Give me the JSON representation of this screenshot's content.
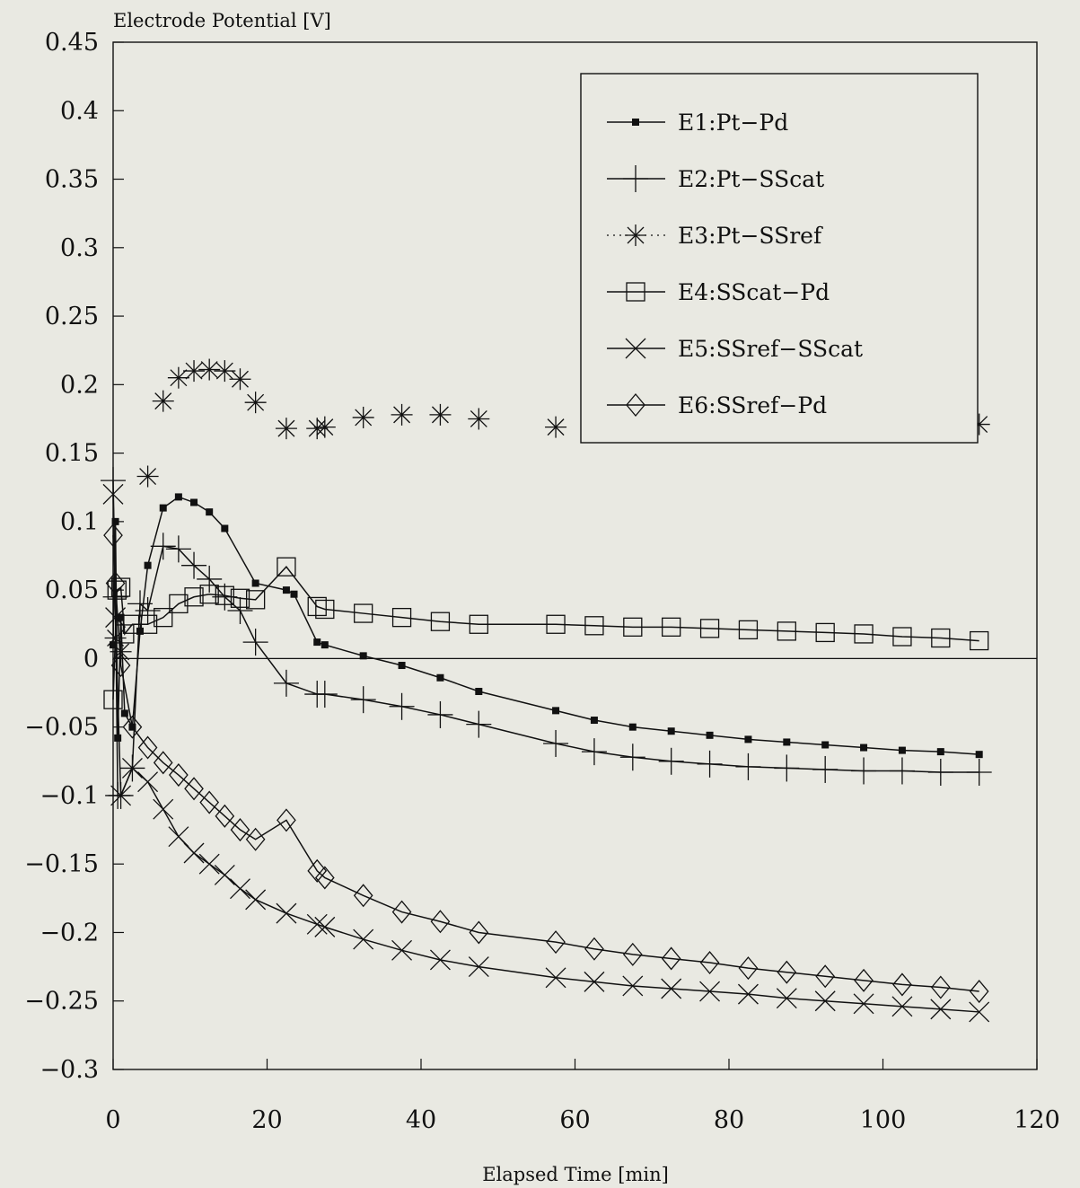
{
  "chart_data": {
    "type": "line",
    "title": "",
    "ylabel": "Electrode Potential [V]",
    "xlabel": "Elapsed Time [min]",
    "xlim": [
      0,
      120
    ],
    "ylim": [
      -0.3,
      0.45
    ],
    "xticks": [
      0,
      20,
      40,
      60,
      80,
      100,
      120
    ],
    "xtick_labels": [
      "0",
      "20",
      "40",
      "60",
      "80",
      "100",
      "120"
    ],
    "yticks": [
      0.45,
      0.4,
      0.35,
      0.3,
      0.25,
      0.2,
      0.15,
      0.1,
      0.05,
      0,
      -0.05,
      -0.1,
      -0.15,
      -0.2,
      -0.25,
      -0.3
    ],
    "ytick_labels": [
      "0.45",
      "0.4",
      "0.35",
      "0.3",
      "0.25",
      "0.2",
      "0.15",
      "0.1",
      "0.05",
      "0",
      "−0.05",
      "−0.1",
      "−0.15",
      "−0.2",
      "−0.25",
      "−0.3"
    ],
    "zero_line": true,
    "grid": false,
    "legend_position": "top-right",
    "series": [
      {
        "name": "E1:Pt−Pd",
        "marker": "filled-square-small",
        "x": [
          0,
          0.3,
          0.6,
          1,
          1.5,
          2.5,
          3.5,
          4.5,
          6.5,
          8.5,
          10.5,
          12.5,
          14.5,
          18.5,
          22.5,
          23.5,
          26.5,
          27.5,
          32.5,
          37.5,
          42.5,
          47.5,
          57.5,
          62.5,
          67.5,
          72.5,
          77.5,
          82.5,
          87.5,
          92.5,
          97.5,
          102.5,
          107.5,
          112.5
        ],
        "y": [
          0.01,
          0.1,
          -0.058,
          0.03,
          -0.04,
          -0.05,
          0.02,
          0.068,
          0.11,
          0.118,
          0.114,
          0.107,
          0.095,
          0.055,
          0.05,
          0.047,
          0.012,
          0.01,
          0.002,
          -0.005,
          -0.014,
          -0.024,
          -0.038,
          -0.045,
          -0.05,
          -0.053,
          -0.056,
          -0.059,
          -0.061,
          -0.063,
          -0.065,
          -0.067,
          -0.068,
          -0.07
        ]
      },
      {
        "name": "E2:Pt−SScat",
        "marker": "plus",
        "x": [
          0,
          0.3,
          0.6,
          1,
          2.5,
          3.5,
          4.5,
          6.5,
          8.5,
          10.5,
          12.5,
          14.5,
          16.5,
          18.5,
          22.5,
          26.5,
          27.5,
          32.5,
          37.5,
          42.5,
          47.5,
          57.5,
          62.5,
          67.5,
          72.5,
          77.5,
          82.5,
          87.5,
          92.5,
          97.5,
          102.5,
          107.5,
          112.5
        ],
        "y": [
          0.13,
          0.045,
          -0.1,
          -0.1,
          -0.08,
          0.04,
          0.035,
          0.082,
          0.08,
          0.068,
          0.058,
          0.045,
          0.035,
          0.012,
          -0.018,
          -0.026,
          -0.026,
          -0.03,
          -0.035,
          -0.041,
          -0.048,
          -0.062,
          -0.068,
          -0.072,
          -0.075,
          -0.077,
          -0.079,
          -0.08,
          -0.081,
          -0.082,
          -0.082,
          -0.083,
          -0.083
        ]
      },
      {
        "name": "E3:Pt−SSref",
        "marker": "asterisk",
        "x": [
          0.3,
          1,
          4.5,
          6.5,
          8.5,
          10.5,
          12.5,
          14.5,
          16.5,
          18.5,
          22.5,
          26.5,
          27.5,
          32.5,
          37.5,
          42.5,
          47.5,
          57.5,
          112.5
        ],
        "y": [
          0.015,
          0.005,
          0.133,
          0.188,
          0.205,
          0.21,
          0.211,
          0.21,
          0.204,
          0.187,
          0.168,
          0.168,
          0.169,
          0.176,
          0.178,
          0.178,
          0.175,
          0.169,
          0.171
        ]
      },
      {
        "name": "E4:SScat−Pd",
        "marker": "open-square",
        "x": [
          0,
          0.5,
          1,
          1.5,
          2.5,
          4.5,
          6.5,
          8.5,
          10.5,
          12.5,
          14.5,
          16.5,
          18.5,
          22.5,
          26.5,
          27.5,
          32.5,
          37.5,
          42.5,
          47.5,
          57.5,
          62.5,
          67.5,
          72.5,
          77.5,
          82.5,
          87.5,
          92.5,
          97.5,
          102.5,
          107.5,
          112.5
        ],
        "y": [
          -0.03,
          0.05,
          0.052,
          0.018,
          0.025,
          0.025,
          0.03,
          0.04,
          0.045,
          0.047,
          0.046,
          0.044,
          0.043,
          0.067,
          0.038,
          0.036,
          0.033,
          0.03,
          0.027,
          0.025,
          0.025,
          0.024,
          0.023,
          0.023,
          0.022,
          0.021,
          0.02,
          0.019,
          0.018,
          0.016,
          0.015,
          0.013
        ]
      },
      {
        "name": "E5:SSref−SScat",
        "marker": "x",
        "x": [
          0,
          0.3,
          1,
          2.5,
          4.5,
          6.5,
          8.5,
          10.5,
          12.5,
          14.5,
          16.5,
          18.5,
          22.5,
          26.5,
          27.5,
          32.5,
          37.5,
          42.5,
          47.5,
          57.5,
          62.5,
          67.5,
          72.5,
          77.5,
          82.5,
          87.5,
          92.5,
          97.5,
          102.5,
          107.5,
          112.5
        ],
        "y": [
          0.12,
          0.03,
          -0.1,
          -0.08,
          -0.09,
          -0.11,
          -0.13,
          -0.142,
          -0.15,
          -0.158,
          -0.168,
          -0.176,
          -0.186,
          -0.194,
          -0.196,
          -0.205,
          -0.213,
          -0.22,
          -0.225,
          -0.233,
          -0.236,
          -0.239,
          -0.241,
          -0.243,
          -0.245,
          -0.248,
          -0.25,
          -0.252,
          -0.254,
          -0.256,
          -0.258
        ]
      },
      {
        "name": "E6:SSref−Pd",
        "marker": "diamond",
        "x": [
          0,
          0.3,
          1,
          2.5,
          4.5,
          6.5,
          8.5,
          10.5,
          12.5,
          14.5,
          16.5,
          18.5,
          22.5,
          26.5,
          27.5,
          32.5,
          37.5,
          42.5,
          47.5,
          57.5,
          62.5,
          67.5,
          72.5,
          77.5,
          82.5,
          87.5,
          92.5,
          97.5,
          102.5,
          107.5,
          112.5
        ],
        "y": [
          0.09,
          0.055,
          -0.005,
          -0.05,
          -0.065,
          -0.076,
          -0.085,
          -0.095,
          -0.105,
          -0.115,
          -0.125,
          -0.132,
          -0.118,
          -0.155,
          -0.16,
          -0.173,
          -0.185,
          -0.192,
          -0.2,
          -0.207,
          -0.212,
          -0.216,
          -0.219,
          -0.222,
          -0.226,
          -0.229,
          -0.232,
          -0.235,
          -0.238,
          -0.24,
          -0.243
        ]
      }
    ]
  }
}
